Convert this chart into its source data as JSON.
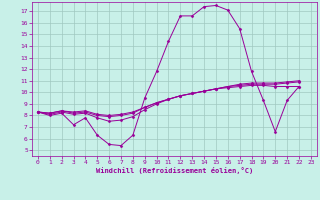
{
  "bg_color": "#c8f0e8",
  "grid_color": "#a0c8c0",
  "line_color": "#990099",
  "xlabel": "Windchill (Refroidissement éolien,°C)",
  "xlim": [
    -0.5,
    23.5
  ],
  "ylim": [
    4.5,
    17.8
  ],
  "xticks": [
    0,
    1,
    2,
    3,
    4,
    5,
    6,
    7,
    8,
    9,
    10,
    11,
    12,
    13,
    14,
    15,
    16,
    17,
    18,
    19,
    20,
    21,
    22,
    23
  ],
  "yticks": [
    5,
    6,
    7,
    8,
    9,
    10,
    11,
    12,
    13,
    14,
    15,
    16,
    17
  ],
  "series": [
    [
      8.3,
      8.0,
      8.2,
      7.2,
      7.8,
      6.3,
      5.5,
      5.4,
      6.3,
      9.5,
      11.8,
      14.4,
      16.6,
      16.6,
      17.4,
      17.5,
      17.1,
      15.5,
      11.8,
      9.3,
      6.6,
      9.3,
      10.5,
      null
    ],
    [
      8.3,
      8.1,
      8.3,
      8.1,
      8.2,
      7.8,
      7.5,
      7.6,
      7.9,
      8.5,
      9.0,
      9.4,
      9.7,
      9.9,
      10.1,
      10.3,
      10.5,
      10.7,
      10.8,
      10.8,
      10.8,
      10.9,
      11.0,
      null
    ],
    [
      8.3,
      8.2,
      8.4,
      8.2,
      8.3,
      8.0,
      7.9,
      8.0,
      8.2,
      8.7,
      9.1,
      9.4,
      9.7,
      9.9,
      10.1,
      10.3,
      10.5,
      10.6,
      10.7,
      10.7,
      10.7,
      10.8,
      10.9,
      null
    ],
    [
      8.3,
      8.2,
      8.4,
      8.3,
      8.4,
      8.1,
      8.0,
      8.1,
      8.3,
      8.7,
      9.1,
      9.4,
      9.7,
      9.9,
      10.1,
      10.3,
      10.4,
      10.5,
      10.6,
      10.6,
      10.5,
      10.5,
      10.5,
      null
    ]
  ]
}
